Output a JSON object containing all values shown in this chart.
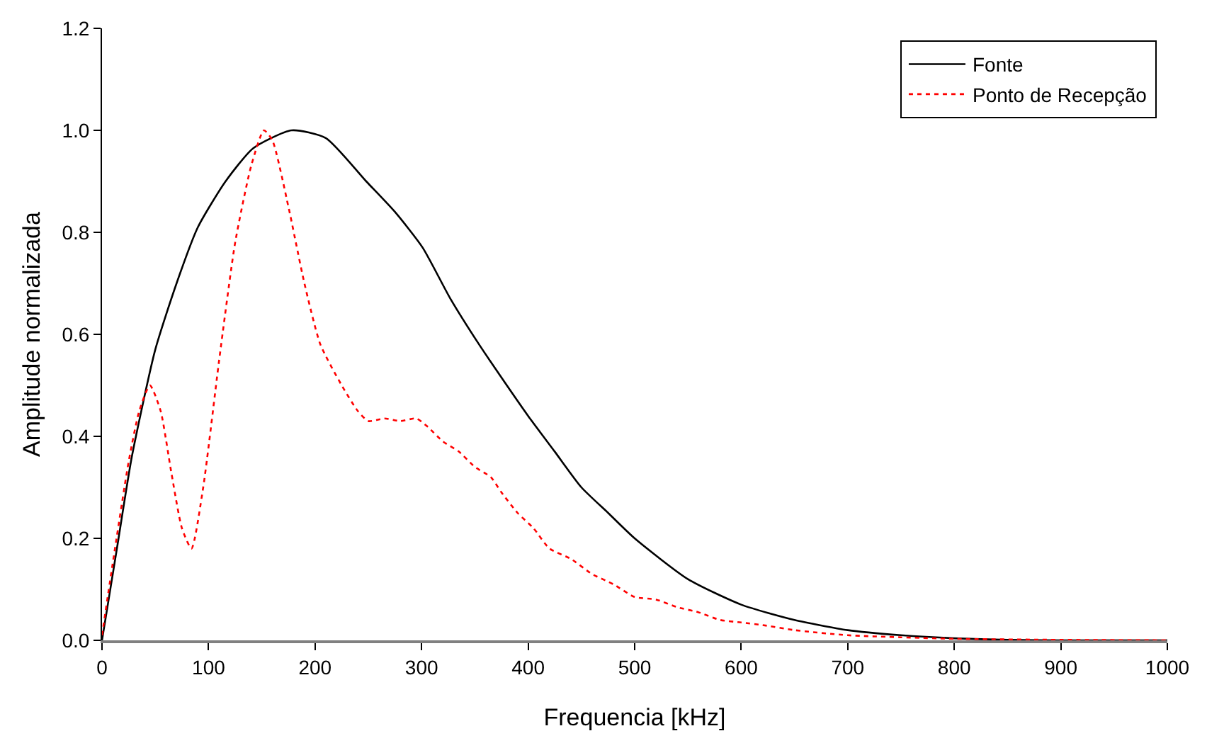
{
  "chart_data": {
    "type": "line",
    "xlabel": "Frequencia [kHz]",
    "ylabel": "Amplitude normalizada",
    "xlim": [
      0,
      1000
    ],
    "xticks": [
      0,
      100,
      200,
      300,
      400,
      500,
      600,
      700,
      800,
      900,
      1000
    ],
    "ylim": [
      0,
      1.2
    ],
    "yticks": [
      {
        "value": 0,
        "label": "0.0"
      },
      {
        "value": 0.2,
        "label": "0.2"
      },
      {
        "value": 0.4,
        "label": "0.4"
      },
      {
        "value": 0.6,
        "label": "0.6"
      },
      {
        "value": 0.8,
        "label": "0.8"
      },
      {
        "value": 1,
        "label": "1.0"
      },
      {
        "value": 1.2,
        "label": "1.2"
      }
    ],
    "grid": false,
    "legend": "top right",
    "marker": "none",
    "series": [
      {
        "name": "Fonte",
        "color": "#000000",
        "line_style": "solid",
        "x": [
          0,
          14,
          28,
          50,
          70,
          90,
          116,
          142,
          178,
          210,
          248,
          275,
          301,
          327,
          354,
          380,
          400,
          425,
          450,
          475,
          500,
          550,
          600,
          650,
          700,
          750,
          800,
          850,
          900,
          1000
        ],
        "values": [
          0,
          0.18,
          0.36,
          0.57,
          0.7,
          0.81,
          0.9,
          0.965,
          1,
          0.985,
          0.9,
          0.84,
          0.77,
          0.67,
          0.58,
          0.5,
          0.44,
          0.37,
          0.3,
          0.25,
          0.2,
          0.12,
          0.07,
          0.04,
          0.02,
          0.01,
          0.004,
          0.001,
          0,
          0
        ]
      },
      {
        "name": "Ponto de Recepção",
        "color": "#ff0000",
        "line_style": "dotted",
        "x": [
          0,
          10,
          25,
          35,
          45,
          55,
          65,
          75,
          84,
          95,
          110,
          125,
          140,
          152,
          160,
          175,
          190,
          205,
          225,
          240,
          250,
          265,
          280,
          295,
          305,
          320,
          335,
          350,
          365,
          375,
          390,
          405,
          420,
          440,
          460,
          480,
          500,
          520,
          540,
          560,
          580,
          600,
          620,
          650,
          700,
          750,
          800,
          900,
          1000
        ],
        "values": [
          0.01,
          0.15,
          0.35,
          0.45,
          0.5,
          0.45,
          0.33,
          0.22,
          0.18,
          0.3,
          0.55,
          0.78,
          0.93,
          1,
          0.98,
          0.85,
          0.7,
          0.58,
          0.5,
          0.45,
          0.43,
          0.435,
          0.43,
          0.435,
          0.42,
          0.39,
          0.37,
          0.34,
          0.32,
          0.29,
          0.25,
          0.22,
          0.18,
          0.16,
          0.13,
          0.11,
          0.085,
          0.08,
          0.065,
          0.055,
          0.04,
          0.035,
          0.03,
          0.02,
          0.01,
          0.006,
          0.003,
          0.001,
          0
        ]
      }
    ]
  }
}
